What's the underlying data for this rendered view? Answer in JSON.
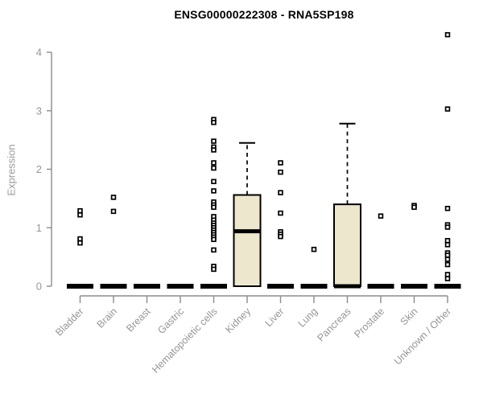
{
  "chart_data": {
    "type": "boxplot",
    "title": "ENSG00000222308 - RNA5SP198",
    "xlabel": "",
    "ylabel": "Expression",
    "ylim": [
      0,
      4.35
    ],
    "yticks": [
      0,
      1,
      2,
      3,
      4
    ],
    "grid": false,
    "legend_position": "none",
    "colors": {
      "box_fill": "#EDE8CD",
      "box_border": "#000000",
      "median": "#000000",
      "whisker": "#000000",
      "axis": "#8c8c8c",
      "tick_label": "#969696",
      "title": "#000000",
      "outlier_stroke": "#000000",
      "outlier_fill": "#ffffff"
    },
    "categories": [
      "Bladder",
      "Brain",
      "Breast",
      "Gastric",
      "Hematopoietic cells",
      "Kidney",
      "Liver",
      "Lung",
      "Pancreas",
      "Prostate",
      "Skin",
      "Unknown / Other"
    ],
    "boxes": [
      {
        "category": "Bladder",
        "q1": 0,
        "median": 0,
        "q3": 0,
        "whisker_low": 0,
        "whisker_high": 0,
        "outliers": [
          1.29,
          1.22,
          0.81,
          0.74
        ]
      },
      {
        "category": "Brain",
        "q1": 0,
        "median": 0,
        "q3": 0,
        "whisker_low": 0,
        "whisker_high": 0,
        "outliers": [
          1.52,
          1.28
        ]
      },
      {
        "category": "Breast",
        "q1": 0,
        "median": 0,
        "q3": 0,
        "whisker_low": 0,
        "whisker_high": 0,
        "outliers": []
      },
      {
        "category": "Gastric",
        "q1": 0,
        "median": 0,
        "q3": 0,
        "whisker_low": 0,
        "whisker_high": 0,
        "outliers": []
      },
      {
        "category": "Hematopoietic cells",
        "q1": 0,
        "median": 0,
        "q3": 0,
        "whisker_low": 0,
        "whisker_high": 0,
        "outliers": [
          2.85,
          2.8,
          2.48,
          2.38,
          2.33,
          2.11,
          2.02,
          1.79,
          1.63,
          1.44,
          1.39,
          1.35,
          1.19,
          1.13,
          1.08,
          1.04,
          1.0,
          0.96,
          0.92,
          0.88,
          0.84,
          0.8,
          0.62,
          0.34,
          0.29
        ]
      },
      {
        "category": "Kidney",
        "q1": 0,
        "median": 0.94,
        "q3": 1.56,
        "whisker_low": 0,
        "whisker_high": 2.45,
        "outliers": []
      },
      {
        "category": "Liver",
        "q1": 0,
        "median": 0,
        "q3": 0,
        "whisker_low": 0,
        "whisker_high": 0,
        "outliers": [
          2.11,
          1.95,
          1.6,
          1.25,
          0.93,
          0.89,
          0.85
        ]
      },
      {
        "category": "Lung",
        "q1": 0,
        "median": 0,
        "q3": 0,
        "whisker_low": 0,
        "whisker_high": 0,
        "outliers": [
          0.63
        ]
      },
      {
        "category": "Pancreas",
        "q1": 0,
        "median": 0,
        "q3": 1.4,
        "whisker_low": 0,
        "whisker_high": 2.78,
        "outliers": []
      },
      {
        "category": "Prostate",
        "q1": 0,
        "median": 0,
        "q3": 0,
        "whisker_low": 0,
        "whisker_high": 0,
        "outliers": [
          1.2
        ]
      },
      {
        "category": "Skin",
        "q1": 0,
        "median": 0,
        "q3": 0,
        "whisker_low": 0,
        "whisker_high": 0,
        "outliers": [
          1.38,
          1.35
        ]
      },
      {
        "category": "Unknown / Other",
        "q1": 0,
        "median": 0,
        "q3": 0,
        "whisker_low": 0,
        "whisker_high": 0,
        "outliers": [
          4.3,
          3.03,
          1.33,
          1.05,
          1.01,
          0.78,
          0.71,
          0.57,
          0.53,
          0.46,
          0.37,
          0.2,
          0.13
        ]
      }
    ]
  }
}
